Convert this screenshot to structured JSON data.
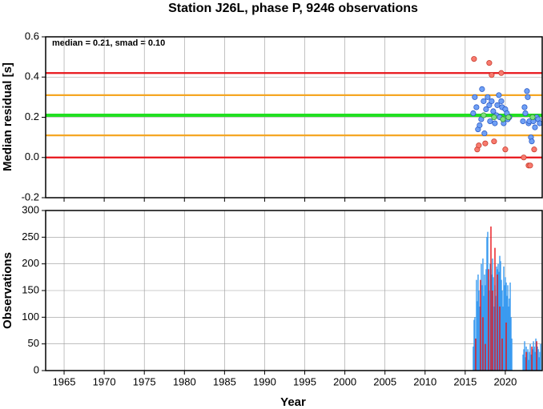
{
  "chart_data": [
    {
      "type": "scatter",
      "title": "Station J26L, phase P, 9246 observations",
      "ylabel": "Median residual [s]",
      "annotation": "median = 0.21, smad = 0.10",
      "xlim": [
        1962.7,
        2024.6
      ],
      "xticks": [
        1965,
        1970,
        1975,
        1980,
        1985,
        1990,
        1995,
        2000,
        2005,
        2010,
        2015,
        2020
      ],
      "ylim": [
        -0.2,
        0.6
      ],
      "yticks": [
        -0.2,
        {
          "value": 0,
          "label": "0.0"
        },
        0.2,
        0.4,
        0.6
      ],
      "grid": true,
      "hlines": [
        {
          "value": 0.42,
          "color": "#e8141a"
        },
        {
          "value": 0.31,
          "color": "#f5a623"
        },
        {
          "value": 0.21,
          "color": "#22e022"
        },
        {
          "value": 0.11,
          "color": "#f5a623"
        },
        {
          "value": 0,
          "color": "#e8141a"
        }
      ],
      "series": [
        {
          "color": "#6fa0f5",
          "x": [
            2016.0,
            2016.2,
            2016.4,
            2016.6,
            2016.8,
            2017.0,
            2017.1,
            2017.3,
            2017.4,
            2017.6,
            2017.8,
            2018.0,
            2018.1,
            2018.3,
            2018.5,
            2018.7,
            2018.9,
            2019.0,
            2019.2,
            2019.3,
            2019.5,
            2019.6,
            2019.8,
            2020.0,
            2020.2,
            2020.3,
            2020.5,
            2022.2,
            2022.4,
            2022.5,
            2022.7,
            2022.8,
            2022.9,
            2023.0,
            2023.2,
            2023.3,
            2023.5,
            2023.7,
            2023.9,
            2024.1,
            2024.3
          ],
          "values": [
            0.22,
            0.3,
            0.25,
            0.14,
            0.16,
            0.19,
            0.34,
            0.28,
            0.12,
            0.24,
            0.3,
            0.26,
            0.18,
            0.28,
            0.23,
            0.17,
            0.21,
            0.26,
            0.31,
            0.2,
            0.28,
            0.25,
            0.17,
            0.24,
            0.22,
            0.19,
            0.2,
            0.18,
            0.25,
            0.22,
            0.33,
            0.3,
            0.17,
            0.18,
            0.1,
            0.08,
            0.18,
            0.15,
            0.2,
            0.19,
            0.17
          ]
        },
        {
          "color": "#7ee07e",
          "x": [
            2017.3,
            2018.6,
            2019.7,
            2020.4,
            2023.4
          ],
          "values": [
            0.21,
            0.2,
            0.19,
            0.2,
            0.2
          ]
        },
        {
          "color": "#f87a6e",
          "x": [
            2016.1,
            2016.5,
            2016.7,
            2017.5,
            2018.0,
            2018.3,
            2018.6,
            2019.5,
            2020.0,
            2022.3,
            2022.9,
            2023.1,
            2023.6
          ],
          "values": [
            0.49,
            0.04,
            0.06,
            0.07,
            0.47,
            0.41,
            0.08,
            0.42,
            0.04,
            0,
            -0.04,
            -0.04,
            0.04
          ]
        }
      ]
    },
    {
      "type": "bar",
      "ylabel": "Observations",
      "xlabel": "Year",
      "xlim": [
        1962.7,
        2024.6
      ],
      "xticks": [
        1965,
        1970,
        1975,
        1980,
        1985,
        1990,
        1995,
        2000,
        2005,
        2010,
        2015,
        2020
      ],
      "ylim": [
        0,
        300
      ],
      "yticks": [
        0,
        50,
        100,
        150,
        200,
        250,
        300
      ],
      "grid": true,
      "series": [
        {
          "color": "#3a9bf0",
          "x": [
            2016.0,
            2016.1,
            2016.2,
            2016.3,
            2016.4,
            2016.5,
            2016.6,
            2016.7,
            2016.8,
            2016.9,
            2017.0,
            2017.1,
            2017.2,
            2017.3,
            2017.4,
            2017.5,
            2017.6,
            2017.7,
            2017.8,
            2017.9,
            2018.0,
            2018.1,
            2018.2,
            2018.3,
            2018.4,
            2018.5,
            2018.6,
            2018.7,
            2018.8,
            2018.9,
            2019.0,
            2019.1,
            2019.2,
            2019.3,
            2019.4,
            2019.5,
            2019.6,
            2019.7,
            2019.8,
            2019.9,
            2020.0,
            2020.1,
            2020.2,
            2020.3,
            2020.4,
            2020.5,
            2020.6,
            2020.7,
            2020.8,
            2022.2,
            2022.3,
            2022.4,
            2022.5,
            2022.6,
            2022.7,
            2022.8,
            2022.9,
            2023.0,
            2023.1,
            2023.2,
            2023.3,
            2023.4,
            2023.5,
            2023.6,
            2023.7,
            2023.8,
            2023.9,
            2024.0,
            2024.1,
            2024.2,
            2024.3,
            2024.4
          ],
          "values": [
            45,
            95,
            100,
            60,
            170,
            130,
            180,
            150,
            120,
            90,
            200,
            160,
            210,
            140,
            180,
            160,
            190,
            250,
            260,
            170,
            150,
            200,
            190,
            180,
            210,
            175,
            120,
            160,
            140,
            195,
            190,
            200,
            185,
            215,
            205,
            170,
            150,
            120,
            195,
            160,
            175,
            165,
            140,
            160,
            120,
            135,
            165,
            100,
            60,
            30,
            40,
            55,
            25,
            45,
            35,
            40,
            20,
            35,
            50,
            30,
            25,
            40,
            55,
            45,
            35,
            60,
            30,
            45,
            40,
            25,
            35,
            50
          ]
        },
        {
          "color": "#e8141a",
          "x": [
            2016.3,
            2016.9,
            2017.2,
            2017.5,
            2017.9,
            2018.2,
            2018.4,
            2018.7,
            2019.0,
            2019.3,
            2019.6,
            2020.1,
            2022.6,
            2023.3,
            2023.9
          ],
          "values": [
            60,
            170,
            100,
            50,
            190,
            270,
            150,
            230,
            180,
            120,
            60,
            90,
            35,
            45,
            55
          ]
        }
      ]
    }
  ]
}
